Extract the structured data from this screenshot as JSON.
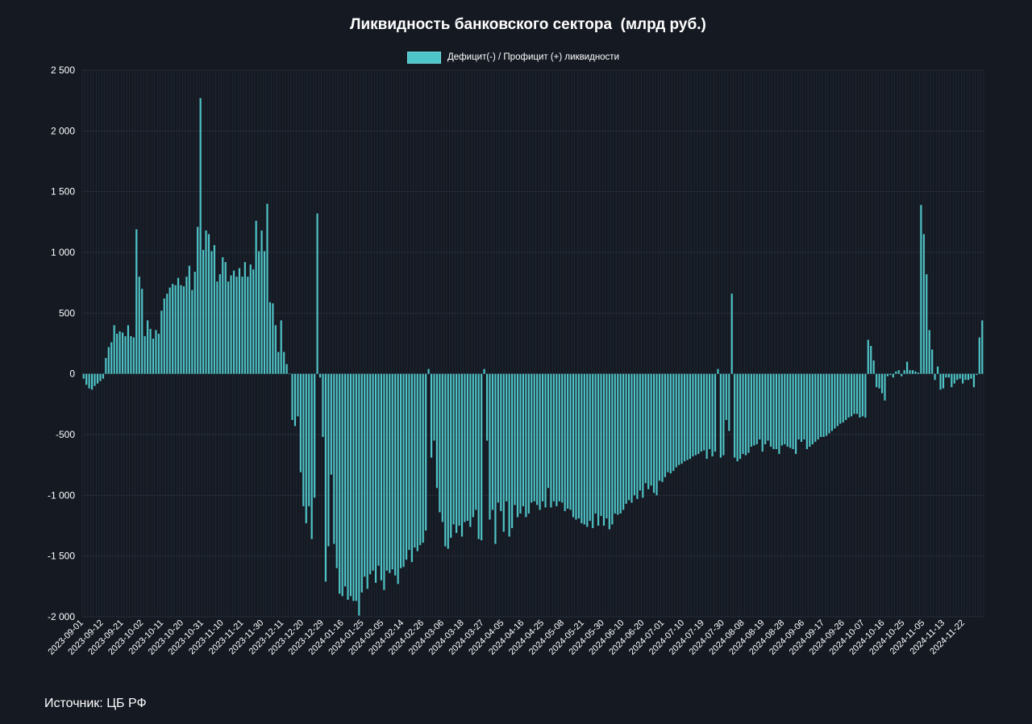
{
  "footer": {
    "source": "Источник: ЦБ РФ"
  },
  "colors": {
    "background": "#141922",
    "bar": "#4ec5c8",
    "grid": "#262d38",
    "text": "#ffffff"
  },
  "chart_data": {
    "type": "bar",
    "title": "Ликвидность банковского сектора  (млрд руб.)",
    "legend": {
      "position": "top-center",
      "entries": [
        "Дефицит(-) / Профицит (+) ликвидности"
      ]
    },
    "grid": true,
    "ylim": [
      -2000,
      2500
    ],
    "yticks": [
      2500,
      2000,
      1500,
      1000,
      500,
      0,
      -500,
      -1000,
      -1500,
      -2000
    ],
    "ytick_labels": [
      "2 500",
      "2 000",
      "1 500",
      "1 000",
      "500",
      "0",
      "-500",
      "-1 000",
      "-1 500",
      "-2 000"
    ],
    "xtick_labels": [
      "2023-09-01",
      "2023-09-12",
      "2023-09-21",
      "2023-10-02",
      "2023-10-11",
      "2023-10-20",
      "2023-10-31",
      "2023-11-10",
      "2023-11-21",
      "2023-11-30",
      "2023-12-11",
      "2023-12-20",
      "2023-12-29",
      "2024-01-16",
      "2024-01-25",
      "2024-02-05",
      "2024-02-14",
      "2024-02-26",
      "2024-03-06",
      "2024-03-18",
      "2024-03-27",
      "2024-04-05",
      "2024-04-16",
      "2024-04-25",
      "2024-05-08",
      "2024-05-21",
      "2024-05-30",
      "2024-06-10",
      "2024-06-20",
      "2024-07-01",
      "2024-07-10",
      "2024-07-19",
      "2024-07-30",
      "2024-08-08",
      "2024-08-19",
      "2024-08-28",
      "2024-09-06",
      "2024-09-17",
      "2024-09-26",
      "2024-10-07",
      "2024-10-16",
      "2024-10-25",
      "2024-11-05",
      "2024-11-13",
      "2024-11-22"
    ],
    "series": [
      {
        "name": "Дефицит(-) / Профицит (+) ликвидности",
        "color": "#4ec5c8",
        "values": [
          -40,
          -90,
          -120,
          -130,
          -100,
          -80,
          -60,
          -40,
          130,
          220,
          260,
          400,
          330,
          350,
          340,
          310,
          400,
          310,
          300,
          1190,
          800,
          700,
          310,
          440,
          370,
          290,
          360,
          330,
          520,
          620,
          660,
          710,
          740,
          730,
          790,
          730,
          720,
          800,
          890,
          690,
          840,
          1210,
          2270,
          1020,
          1180,
          1150,
          1010,
          1060,
          760,
          820,
          960,
          920,
          760,
          810,
          850,
          800,
          870,
          800,
          920,
          800,
          900,
          860,
          1260,
          1010,
          1180,
          1010,
          1400,
          590,
          580,
          400,
          180,
          440,
          180,
          80,
          0,
          -380,
          -430,
          -350,
          -810,
          -1090,
          -1230,
          -1090,
          -1360,
          -1020,
          1320,
          -30,
          -520,
          -1710,
          -1420,
          -830,
          -1400,
          -1600,
          -1810,
          -1830,
          -1750,
          -1860,
          -1830,
          -1870,
          -1870,
          -1990,
          -1800,
          -1670,
          -1770,
          -1650,
          -1620,
          -1720,
          -1580,
          -1700,
          -1780,
          -1620,
          -1640,
          -1610,
          -1660,
          -1730,
          -1600,
          -1590,
          -1530,
          -1450,
          -1550,
          -1430,
          -1460,
          -1410,
          -1390,
          -1290,
          40,
          -690,
          -550,
          -940,
          -1140,
          -1220,
          -1420,
          -1440,
          -1350,
          -1240,
          -1310,
          -1250,
          -1340,
          -1220,
          -1210,
          -1260,
          -1180,
          -1120,
          -1360,
          -1370,
          40,
          -550,
          -1200,
          -1120,
          -1400,
          -1060,
          -1130,
          -1300,
          -1050,
          -1340,
          -1270,
          -1080,
          -1180,
          -1150,
          -1090,
          -1180,
          -1150,
          -1060,
          -1050,
          -1080,
          -1120,
          -1050,
          -1100,
          -940,
          -1100,
          -1050,
          -1090,
          -1050,
          -1060,
          -1130,
          -1110,
          -1120,
          -1180,
          -1200,
          -1190,
          -1230,
          -1240,
          -1260,
          -1210,
          -1270,
          -1150,
          -1250,
          -1170,
          -1250,
          -1190,
          -1280,
          -1240,
          -1150,
          -1160,
          -1150,
          -1120,
          -1070,
          -1040,
          -1060,
          -1000,
          -1030,
          -960,
          -1020,
          -900,
          -950,
          -920,
          -980,
          -1000,
          -880,
          -890,
          -850,
          -810,
          -820,
          -800,
          -770,
          -750,
          -740,
          -720,
          -710,
          -700,
          -680,
          -670,
          -660,
          -640,
          -630,
          -700,
          -620,
          -680,
          -640,
          40,
          -690,
          -670,
          -380,
          -470,
          660,
          -690,
          -720,
          -700,
          -660,
          -670,
          -650,
          -600,
          -590,
          -580,
          -540,
          -640,
          -580,
          -550,
          -600,
          -620,
          -620,
          -660,
          -590,
          -580,
          -600,
          -610,
          -620,
          -660,
          -540,
          -560,
          -540,
          -620,
          -600,
          -580,
          -560,
          -540,
          -520,
          -520,
          -510,
          -490,
          -470,
          -450,
          -430,
          -410,
          -400,
          -380,
          -360,
          -350,
          -330,
          -330,
          -360,
          -350,
          -360,
          280,
          230,
          110,
          -110,
          -120,
          -160,
          -220,
          -20,
          -10,
          -30,
          20,
          30,
          -20,
          30,
          100,
          30,
          30,
          20,
          10,
          1390,
          1150,
          820,
          360,
          200,
          -50,
          60,
          -130,
          -120,
          -30,
          -30,
          -110,
          -80,
          -50,
          -40,
          -80,
          -50,
          -50,
          -40,
          -110,
          -10,
          300,
          440
        ]
      }
    ]
  }
}
